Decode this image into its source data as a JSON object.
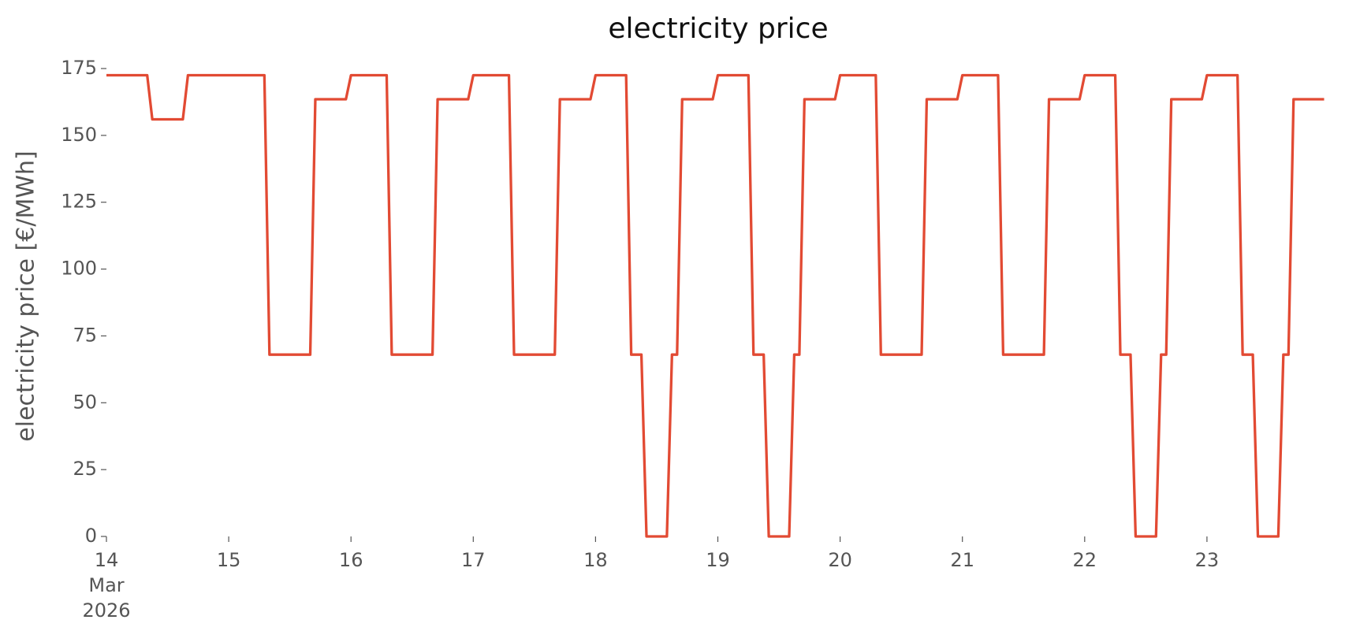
{
  "chart_data": {
    "type": "line",
    "title": "electricity price",
    "y_label": "electricity price [€/MWh]",
    "color": "#E24A33",
    "x": [
      0,
      8,
      9,
      15,
      16,
      31,
      32,
      40,
      41,
      47,
      48,
      55,
      56,
      64,
      65,
      71,
      72,
      79,
      80,
      88,
      89,
      95,
      96,
      102,
      103,
      105,
      106,
      110,
      111,
      112,
      113,
      119,
      120,
      126,
      127,
      129,
      130,
      134,
      135,
      136,
      137,
      143,
      144,
      151,
      152,
      160,
      161,
      167,
      168,
      175,
      176,
      184,
      185,
      191,
      192,
      198,
      199,
      201,
      202,
      206,
      207,
      208,
      209,
      215,
      216,
      222,
      223,
      225,
      226,
      230,
      231,
      232,
      233,
      239
    ],
    "values": [
      172.5,
      172.5,
      156,
      156,
      172.5,
      172.5,
      68,
      68,
      163.5,
      163.5,
      172.5,
      172.5,
      68,
      68,
      163.5,
      163.5,
      172.5,
      172.5,
      68,
      68,
      163.5,
      163.5,
      172.5,
      172.5,
      68,
      68,
      0,
      0,
      68,
      68,
      163.5,
      163.5,
      172.5,
      172.5,
      68,
      68,
      0,
      0,
      68,
      68,
      163.5,
      163.5,
      172.5,
      172.5,
      68,
      68,
      163.5,
      163.5,
      172.5,
      172.5,
      68,
      68,
      163.5,
      163.5,
      172.5,
      172.5,
      68,
      68,
      0,
      0,
      68,
      68,
      163.5,
      163.5,
      172.5,
      172.5,
      68,
      68,
      0,
      0,
      68,
      68,
      163.5,
      163.5
    ],
    "xlim": [
      0,
      240
    ],
    "xticks": [
      {
        "value": 0,
        "label": "14\nMar\n2026"
      },
      {
        "value": 24,
        "label": "15"
      },
      {
        "value": 48,
        "label": "16"
      },
      {
        "value": 72,
        "label": "17"
      },
      {
        "value": 96,
        "label": "18"
      },
      {
        "value": 120,
        "label": "19"
      },
      {
        "value": 144,
        "label": "20"
      },
      {
        "value": 168,
        "label": "21"
      },
      {
        "value": 192,
        "label": "22"
      },
      {
        "value": 216,
        "label": "23"
      }
    ],
    "ylim": [
      0,
      175
    ],
    "yticks": [
      0,
      25,
      50,
      75,
      100,
      125,
      150,
      175
    ],
    "grid": false
  }
}
